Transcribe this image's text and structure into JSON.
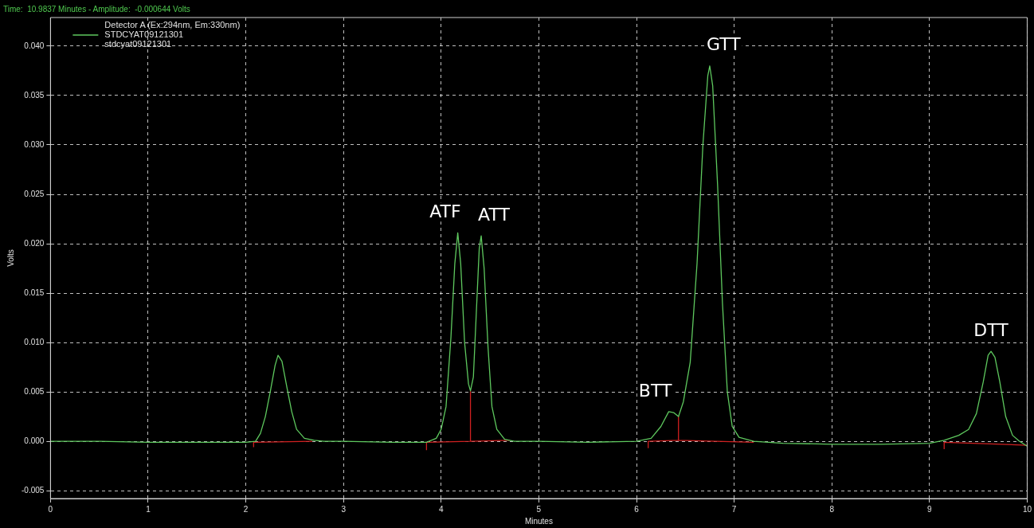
{
  "chart_data": {
    "type": "line",
    "subtitle": "Time:  10.9837 Minutes - Amplitude:  -0.000644 Volts",
    "xlabel": "Minutes",
    "ylabel": "Volts",
    "legend_title": "Detector A (Ex:294nm, Em:330nm)",
    "legend": "top left",
    "xlim": [
      0,
      10
    ],
    "xticks": [
      0,
      1,
      2,
      3,
      4,
      5,
      6,
      7,
      8,
      9,
      10
    ],
    "ylim": [
      -0.0058,
      0.0429
    ],
    "yticks": [
      {
        "value": -0.005,
        "label": "-0.005"
      },
      {
        "value": 0,
        "label": "0.000"
      },
      {
        "value": 0.005,
        "label": "0.005"
      },
      {
        "value": 0.01,
        "label": "0.010"
      },
      {
        "value": 0.015,
        "label": "0.015"
      },
      {
        "value": 0.02,
        "label": "0.020"
      },
      {
        "value": 0.025,
        "label": "0.025"
      },
      {
        "value": 0.03,
        "label": "0.030"
      },
      {
        "value": 0.035,
        "label": "0.035"
      },
      {
        "value": 0.04,
        "label": "0.040"
      }
    ],
    "grid": true,
    "line_style": "solid",
    "marker": "none",
    "series": [
      {
        "name": "STDCYAT09121301",
        "color": "#5ec85e",
        "x": [
          0,
          0.5,
          1,
          1.5,
          2.0,
          2.1,
          2.15,
          2.2,
          2.25,
          2.3,
          2.33,
          2.37,
          2.42,
          2.47,
          2.52,
          2.6,
          2.7,
          2.8,
          3.0,
          3.5,
          3.85,
          3.95,
          4.0,
          4.05,
          4.1,
          4.14,
          4.17,
          4.2,
          4.24,
          4.28,
          4.3,
          4.33,
          4.36,
          4.39,
          4.41,
          4.44,
          4.48,
          4.52,
          4.57,
          4.65,
          4.75,
          5.0,
          5.5,
          6.0,
          6.15,
          6.25,
          6.33,
          6.38,
          6.43,
          6.48,
          6.55,
          6.62,
          6.68,
          6.73,
          6.75,
          6.78,
          6.83,
          6.88,
          6.93,
          6.98,
          7.05,
          7.2,
          7.5,
          8.0,
          8.5,
          9.0,
          9.15,
          9.3,
          9.4,
          9.48,
          9.55,
          9.6,
          9.63,
          9.67,
          9.72,
          9.78,
          9.85,
          9.92,
          10
        ],
        "values": [
          0,
          0,
          -0.0001,
          -0.0001,
          -0.0001,
          0,
          0.0008,
          0.0025,
          0.005,
          0.0077,
          0.0087,
          0.0081,
          0.0055,
          0.003,
          0.0012,
          0.0003,
          0.0001,
          0,
          0,
          -0.0001,
          -0.0001,
          0.0003,
          0.0012,
          0.0035,
          0.0105,
          0.018,
          0.0211,
          0.018,
          0.01,
          0.0058,
          0.0051,
          0.0065,
          0.013,
          0.0195,
          0.0208,
          0.0175,
          0.0095,
          0.0035,
          0.0012,
          0.0002,
          0,
          0,
          -0.0001,
          0,
          0.0003,
          0.0015,
          0.003,
          0.0029,
          0.0025,
          0.004,
          0.008,
          0.018,
          0.03,
          0.037,
          0.038,
          0.036,
          0.026,
          0.014,
          0.005,
          0.0015,
          0.0004,
          0,
          -0.0002,
          -0.0003,
          -0.0003,
          -0.0002,
          0.0001,
          0.0006,
          0.0012,
          0.0028,
          0.006,
          0.0087,
          0.0091,
          0.0085,
          0.006,
          0.0025,
          0.0006,
          0,
          -0.0005
        ]
      },
      {
        "color": "#d02020",
        "x": [
          2.08,
          2.08,
          2.68
        ],
        "values": [
          -0.0006,
          -0.0001,
          0
        ]
      },
      {
        "color": "#d02020",
        "x": [
          3.85,
          3.85,
          4.3,
          4.3,
          4.3,
          4.7
        ],
        "values": [
          -0.0009,
          -0.0001,
          0,
          0.0051,
          0,
          0.0001
        ]
      },
      {
        "color": "#d02020",
        "x": [
          6.12,
          6.12,
          6.43,
          6.43,
          6.43,
          7.2
        ],
        "values": [
          -0.0007,
          0,
          0.0001,
          0.0025,
          0.0001,
          -0.0001
        ]
      },
      {
        "color": "#d02020",
        "x": [
          9.15,
          9.15,
          10
        ],
        "values": [
          -0.0008,
          -0.0001,
          -0.0004
        ]
      }
    ],
    "annotations": [
      "stdcyat09121301",
      {
        "text": "ATF",
        "x": 4.17,
        "y": 0.0211
      },
      {
        "text": "ATT",
        "x": 4.41,
        "y": 0.0208
      },
      {
        "text": "BTT",
        "x": 6.33,
        "y": 0.003
      },
      {
        "text": "GTT",
        "x": 6.75,
        "y": 0.038
      },
      {
        "text": "DTT",
        "x": 9.63,
        "y": 0.0091
      }
    ]
  }
}
